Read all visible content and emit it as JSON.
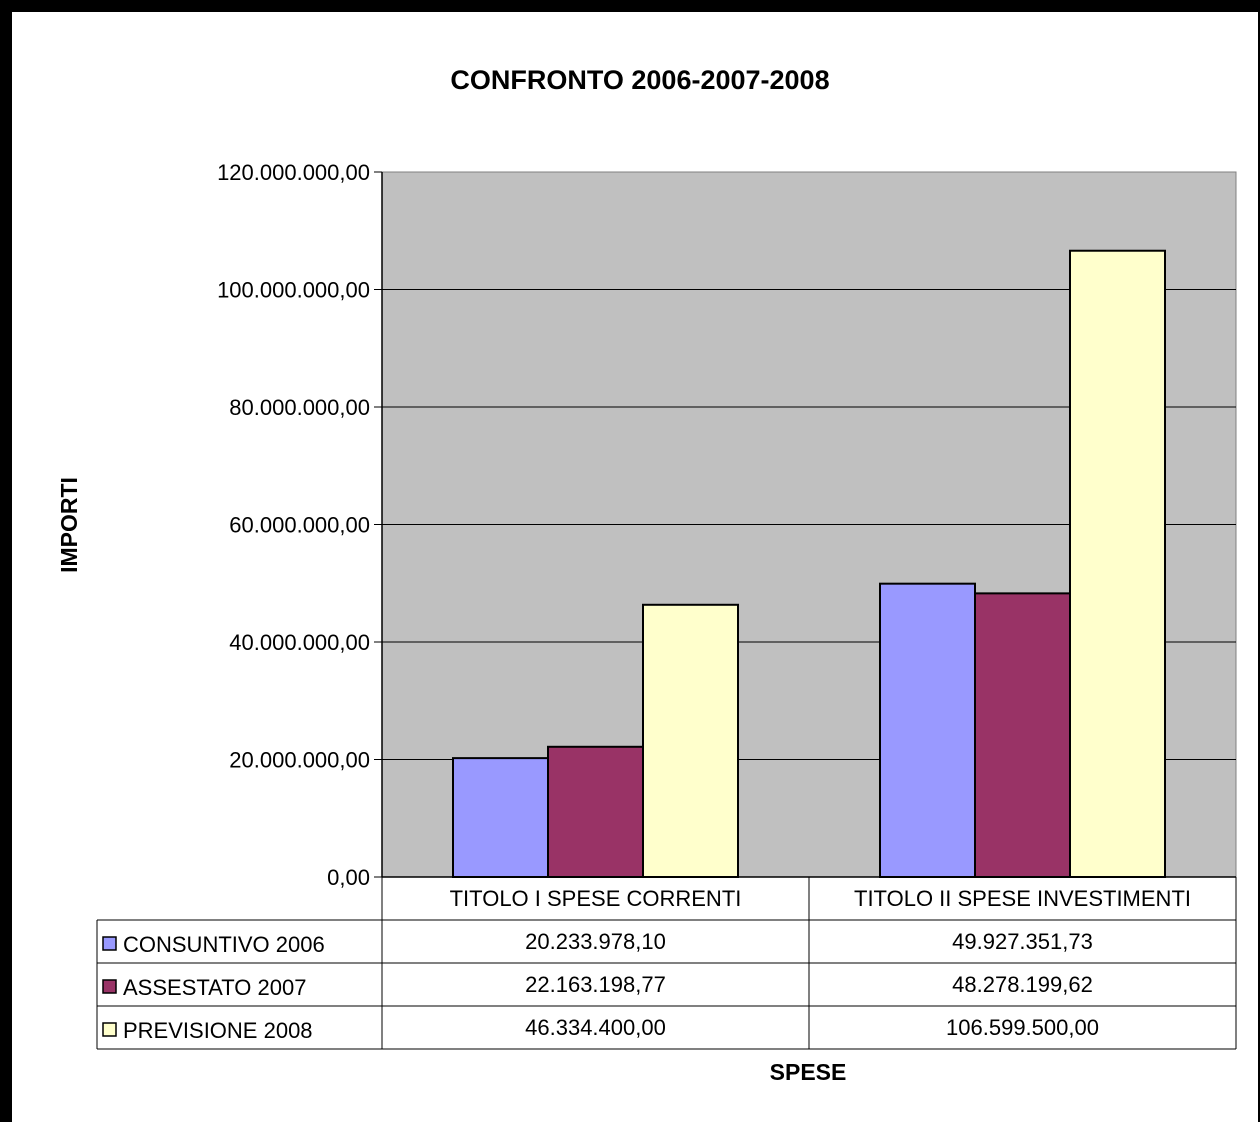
{
  "chart_data": {
    "type": "bar",
    "title": "CONFRONTO 2006-2007-2008",
    "xlabel": "SPESE",
    "ylabel": "IMPORTI",
    "ylim": [
      0,
      120000000
    ],
    "yticks": [
      0,
      20000000,
      40000000,
      60000000,
      80000000,
      100000000,
      120000000
    ],
    "ytick_labels": [
      "0,00",
      "20.000.000,00",
      "40.000.000,00",
      "60.000.000,00",
      "80.000.000,00",
      "100.000.000,00",
      "120.000.000,00"
    ],
    "categories": [
      "TITOLO I SPESE CORRENTI",
      "TITOLO II SPESE INVESTIMENTI"
    ],
    "series": [
      {
        "name": "CONSUNTIVO 2006",
        "color": "#9999ff",
        "values": [
          20233978.1,
          49927351.73
        ],
        "labels": [
          "20.233.978,10",
          "49.927.351,73"
        ]
      },
      {
        "name": "ASSESTATO 2007",
        "color": "#993366",
        "values": [
          22163198.77,
          48278199.62
        ],
        "labels": [
          "22.163.198,77",
          "48.278.199,62"
        ]
      },
      {
        "name": "PREVISIONE 2008",
        "color": "#ffffcc",
        "values": [
          46334400.0,
          106599500.0
        ],
        "labels": [
          "46.334.400,00",
          "106.599.500,00"
        ]
      }
    ],
    "grid": true,
    "plot_background": "#c0c0c0",
    "legend": "data table"
  }
}
